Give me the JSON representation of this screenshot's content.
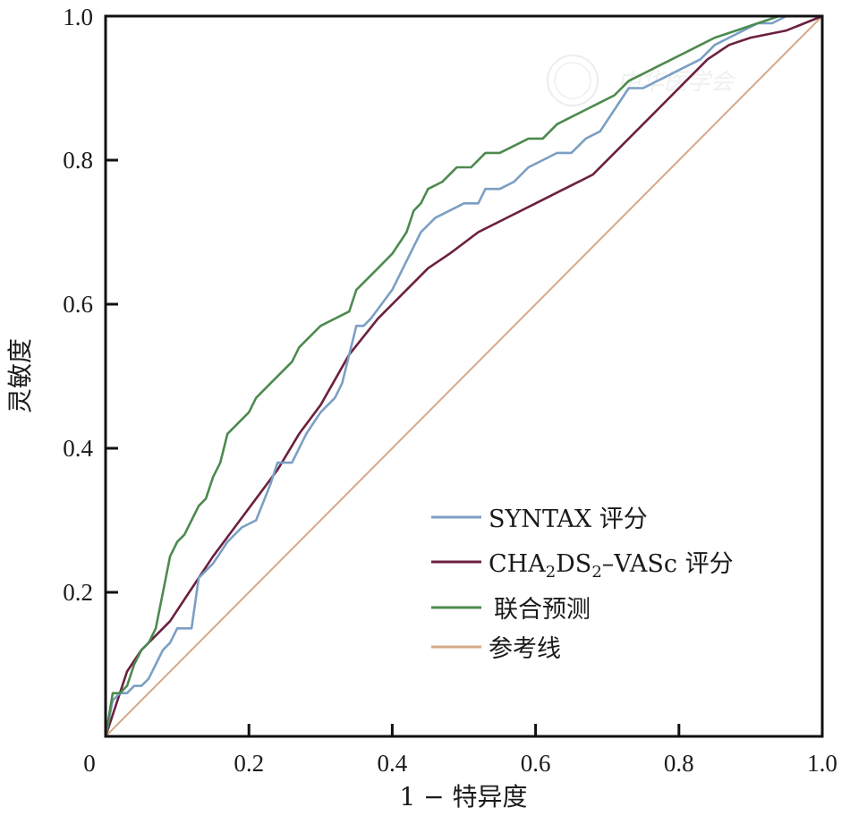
{
  "chart_data": {
    "type": "line",
    "title": "",
    "xlabel": "1 − 特异度",
    "ylabel": "灵敏度",
    "xlim": [
      0,
      1
    ],
    "ylim": [
      0,
      1
    ],
    "x_ticks": [
      "0",
      "0.2",
      "0.4",
      "0.6",
      "0.8",
      "1.0"
    ],
    "y_ticks": [
      "0.2",
      "0.4",
      "0.6",
      "0.8",
      "1.0"
    ],
    "grid": false,
    "legend_position": "bottom-right",
    "series": [
      {
        "name": "SYNTAX 评分",
        "legend_main": "SYNTAX 评分",
        "color": "#7b9fc4",
        "points": [
          [
            0,
            0
          ],
          [
            0.01,
            0.05
          ],
          [
            0.02,
            0.06
          ],
          [
            0.03,
            0.06
          ],
          [
            0.04,
            0.07
          ],
          [
            0.05,
            0.07
          ],
          [
            0.06,
            0.08
          ],
          [
            0.07,
            0.1
          ],
          [
            0.08,
            0.12
          ],
          [
            0.09,
            0.13
          ],
          [
            0.1,
            0.15
          ],
          [
            0.12,
            0.15
          ],
          [
            0.13,
            0.22
          ],
          [
            0.15,
            0.24
          ],
          [
            0.17,
            0.27
          ],
          [
            0.19,
            0.29
          ],
          [
            0.21,
            0.3
          ],
          [
            0.23,
            0.35
          ],
          [
            0.24,
            0.38
          ],
          [
            0.26,
            0.38
          ],
          [
            0.28,
            0.42
          ],
          [
            0.3,
            0.45
          ],
          [
            0.32,
            0.47
          ],
          [
            0.33,
            0.49
          ],
          [
            0.35,
            0.57
          ],
          [
            0.36,
            0.57
          ],
          [
            0.37,
            0.58
          ],
          [
            0.4,
            0.62
          ],
          [
            0.42,
            0.66
          ],
          [
            0.44,
            0.7
          ],
          [
            0.46,
            0.72
          ],
          [
            0.48,
            0.73
          ],
          [
            0.5,
            0.74
          ],
          [
            0.52,
            0.74
          ],
          [
            0.53,
            0.76
          ],
          [
            0.55,
            0.76
          ],
          [
            0.57,
            0.77
          ],
          [
            0.59,
            0.79
          ],
          [
            0.61,
            0.8
          ],
          [
            0.63,
            0.81
          ],
          [
            0.65,
            0.81
          ],
          [
            0.67,
            0.83
          ],
          [
            0.69,
            0.84
          ],
          [
            0.71,
            0.87
          ],
          [
            0.73,
            0.9
          ],
          [
            0.75,
            0.9
          ],
          [
            0.77,
            0.91
          ],
          [
            0.79,
            0.92
          ],
          [
            0.81,
            0.93
          ],
          [
            0.83,
            0.94
          ],
          [
            0.85,
            0.96
          ],
          [
            0.87,
            0.97
          ],
          [
            0.89,
            0.98
          ],
          [
            0.91,
            0.99
          ],
          [
            0.93,
            0.99
          ],
          [
            0.95,
            1.0
          ],
          [
            1.0,
            1.0
          ]
        ]
      },
      {
        "name": "CHA₂DS₂-VASc 评分",
        "legend_main": "CHA",
        "legend_sub1": "2",
        "legend_mid": "DS",
        "legend_sub2": "2",
        "legend_end": "–VASc 评分",
        "color": "#6b2040",
        "points": [
          [
            0,
            0
          ],
          [
            0.01,
            0.03
          ],
          [
            0.03,
            0.09
          ],
          [
            0.05,
            0.12
          ],
          [
            0.07,
            0.14
          ],
          [
            0.09,
            0.16
          ],
          [
            0.11,
            0.19
          ],
          [
            0.13,
            0.22
          ],
          [
            0.15,
            0.25
          ],
          [
            0.18,
            0.29
          ],
          [
            0.21,
            0.33
          ],
          [
            0.24,
            0.37
          ],
          [
            0.27,
            0.42
          ],
          [
            0.3,
            0.46
          ],
          [
            0.34,
            0.53
          ],
          [
            0.38,
            0.58
          ],
          [
            0.42,
            0.62
          ],
          [
            0.45,
            0.65
          ],
          [
            0.48,
            0.67
          ],
          [
            0.52,
            0.7
          ],
          [
            0.56,
            0.72
          ],
          [
            0.6,
            0.74
          ],
          [
            0.64,
            0.76
          ],
          [
            0.68,
            0.78
          ],
          [
            0.72,
            0.82
          ],
          [
            0.76,
            0.86
          ],
          [
            0.8,
            0.9
          ],
          [
            0.84,
            0.94
          ],
          [
            0.87,
            0.96
          ],
          [
            0.9,
            0.97
          ],
          [
            0.95,
            0.98
          ],
          [
            1.0,
            1.0
          ]
        ]
      },
      {
        "name": "联合预测",
        "legend_main": "联合预测",
        "color": "#4d8a4f",
        "points": [
          [
            0,
            0
          ],
          [
            0.01,
            0.06
          ],
          [
            0.02,
            0.06
          ],
          [
            0.03,
            0.07
          ],
          [
            0.04,
            0.1
          ],
          [
            0.05,
            0.12
          ],
          [
            0.06,
            0.13
          ],
          [
            0.07,
            0.15
          ],
          [
            0.08,
            0.2
          ],
          [
            0.09,
            0.25
          ],
          [
            0.1,
            0.27
          ],
          [
            0.11,
            0.28
          ],
          [
            0.12,
            0.3
          ],
          [
            0.13,
            0.32
          ],
          [
            0.14,
            0.33
          ],
          [
            0.15,
            0.36
          ],
          [
            0.16,
            0.38
          ],
          [
            0.17,
            0.42
          ],
          [
            0.18,
            0.43
          ],
          [
            0.19,
            0.44
          ],
          [
            0.2,
            0.45
          ],
          [
            0.21,
            0.47
          ],
          [
            0.23,
            0.49
          ],
          [
            0.25,
            0.51
          ],
          [
            0.26,
            0.52
          ],
          [
            0.27,
            0.54
          ],
          [
            0.28,
            0.55
          ],
          [
            0.3,
            0.57
          ],
          [
            0.32,
            0.58
          ],
          [
            0.34,
            0.59
          ],
          [
            0.35,
            0.62
          ],
          [
            0.37,
            0.64
          ],
          [
            0.38,
            0.65
          ],
          [
            0.4,
            0.67
          ],
          [
            0.42,
            0.7
          ],
          [
            0.43,
            0.73
          ],
          [
            0.44,
            0.74
          ],
          [
            0.45,
            0.76
          ],
          [
            0.47,
            0.77
          ],
          [
            0.49,
            0.79
          ],
          [
            0.51,
            0.79
          ],
          [
            0.53,
            0.81
          ],
          [
            0.55,
            0.81
          ],
          [
            0.57,
            0.82
          ],
          [
            0.59,
            0.83
          ],
          [
            0.61,
            0.83
          ],
          [
            0.63,
            0.85
          ],
          [
            0.65,
            0.86
          ],
          [
            0.67,
            0.87
          ],
          [
            0.69,
            0.88
          ],
          [
            0.71,
            0.89
          ],
          [
            0.73,
            0.91
          ],
          [
            0.75,
            0.92
          ],
          [
            0.77,
            0.93
          ],
          [
            0.79,
            0.94
          ],
          [
            0.81,
            0.95
          ],
          [
            0.83,
            0.96
          ],
          [
            0.85,
            0.97
          ],
          [
            0.88,
            0.98
          ],
          [
            0.91,
            0.99
          ],
          [
            0.94,
            1.0
          ],
          [
            1.0,
            1.0
          ]
        ]
      },
      {
        "name": "参考线",
        "legend_main": "参考线",
        "color": "#d6a98a",
        "points": [
          [
            0,
            0
          ],
          [
            1,
            1
          ]
        ]
      }
    ]
  }
}
